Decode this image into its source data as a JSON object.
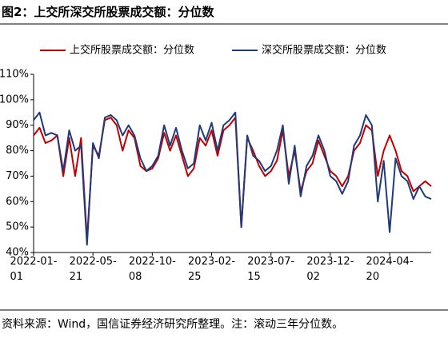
{
  "chart_data": {
    "type": "line",
    "title": "图2：上交所深交所股票成交额：分位数",
    "source": "资料来源：Wind，国信证券经济研究所整理。注：滚动三年分位数。",
    "x": [
      "2022-01-01",
      "2022-01-15",
      "2022-01-29",
      "2022-02-12",
      "2022-02-26",
      "2022-03-12",
      "2022-03-26",
      "2022-04-09",
      "2022-04-23",
      "2022-05-07",
      "2022-05-21",
      "2022-06-04",
      "2022-06-18",
      "2022-07-02",
      "2022-07-16",
      "2022-07-30",
      "2022-08-13",
      "2022-08-27",
      "2022-09-10",
      "2022-09-24",
      "2022-10-08",
      "2022-10-22",
      "2022-11-05",
      "2022-11-19",
      "2022-12-03",
      "2022-12-17",
      "2022-12-31",
      "2023-01-14",
      "2023-01-28",
      "2023-02-11",
      "2023-02-25",
      "2023-03-11",
      "2023-03-25",
      "2023-04-08",
      "2023-04-22",
      "2023-05-06",
      "2023-05-20",
      "2023-06-03",
      "2023-06-17",
      "2023-07-01",
      "2023-07-15",
      "2023-07-29",
      "2023-08-12",
      "2023-08-26",
      "2023-09-09",
      "2023-09-23",
      "2023-10-07",
      "2023-10-21",
      "2023-11-04",
      "2023-11-18",
      "2023-12-02",
      "2023-12-16",
      "2023-12-30",
      "2024-01-13",
      "2024-01-27",
      "2024-02-10",
      "2024-02-24",
      "2024-03-09",
      "2024-03-23",
      "2024-04-06",
      "2024-04-20",
      "2024-05-04",
      "2024-05-18",
      "2024-06-01",
      "2024-06-15",
      "2024-06-29",
      "2024-07-13",
      "2024-07-27"
    ],
    "series": [
      {
        "name": "上交所股票成交额：分位数",
        "color": "#c00000",
        "values": [
          86,
          89,
          83,
          84,
          86,
          70,
          85,
          70,
          85,
          45,
          82,
          78,
          92,
          93,
          90,
          80,
          88,
          85,
          74,
          72,
          73,
          77,
          87,
          80,
          86,
          78,
          70,
          73,
          85,
          82,
          88,
          78,
          88,
          90,
          93,
          50,
          85,
          80,
          74,
          70,
          72,
          76,
          88,
          70,
          80,
          64,
          72,
          75,
          84,
          78,
          72,
          70,
          66,
          70,
          80,
          83,
          90,
          88,
          70,
          80,
          86,
          80,
          72,
          70,
          64,
          66,
          68,
          66
        ]
      },
      {
        "name": "深交所股票成交额：分位数",
        "color": "#1f3b7a",
        "values": [
          92,
          95,
          86,
          87,
          86,
          72,
          88,
          80,
          82,
          43,
          83,
          77,
          93,
          94,
          92,
          86,
          90,
          86,
          77,
          72,
          74,
          78,
          90,
          82,
          89,
          80,
          73,
          75,
          90,
          84,
          91,
          80,
          90,
          92,
          95,
          50,
          86,
          78,
          76,
          72,
          74,
          80,
          90,
          67,
          82,
          62,
          74,
          78,
          86,
          80,
          70,
          68,
          63,
          68,
          82,
          86,
          94,
          90,
          60,
          76,
          48,
          77,
          70,
          68,
          61,
          66,
          62,
          61
        ]
      }
    ],
    "xlim": [
      "2022-01-01",
      "2024-07-27"
    ],
    "xticks": [
      {
        "value": "2022-01-01",
        "label": "2022-01-\n01"
      },
      {
        "value": "2022-05-21",
        "label": "2022-05-\n21"
      },
      {
        "value": "2022-10-08",
        "label": "2022-10-\n08"
      },
      {
        "value": "2023-02-25",
        "label": "2023-02-\n25"
      },
      {
        "value": "2023-07-15",
        "label": "2023-07-\n15"
      },
      {
        "value": "2023-12-02",
        "label": "2023-12-\n02"
      },
      {
        "value": "2024-04-20",
        "label": "2024-04-\n20"
      }
    ],
    "ylim": [
      40,
      110
    ],
    "yticks": [
      {
        "value": 40,
        "label": "40%"
      },
      {
        "value": 50,
        "label": "50%"
      },
      {
        "value": 60,
        "label": "60%"
      },
      {
        "value": 70,
        "label": "70%"
      },
      {
        "value": 80,
        "label": "80%"
      },
      {
        "value": 90,
        "label": "90%"
      },
      {
        "value": 100,
        "label": "100%"
      },
      {
        "value": 110,
        "label": "110%"
      }
    ],
    "grid": false,
    "legend": "top"
  }
}
